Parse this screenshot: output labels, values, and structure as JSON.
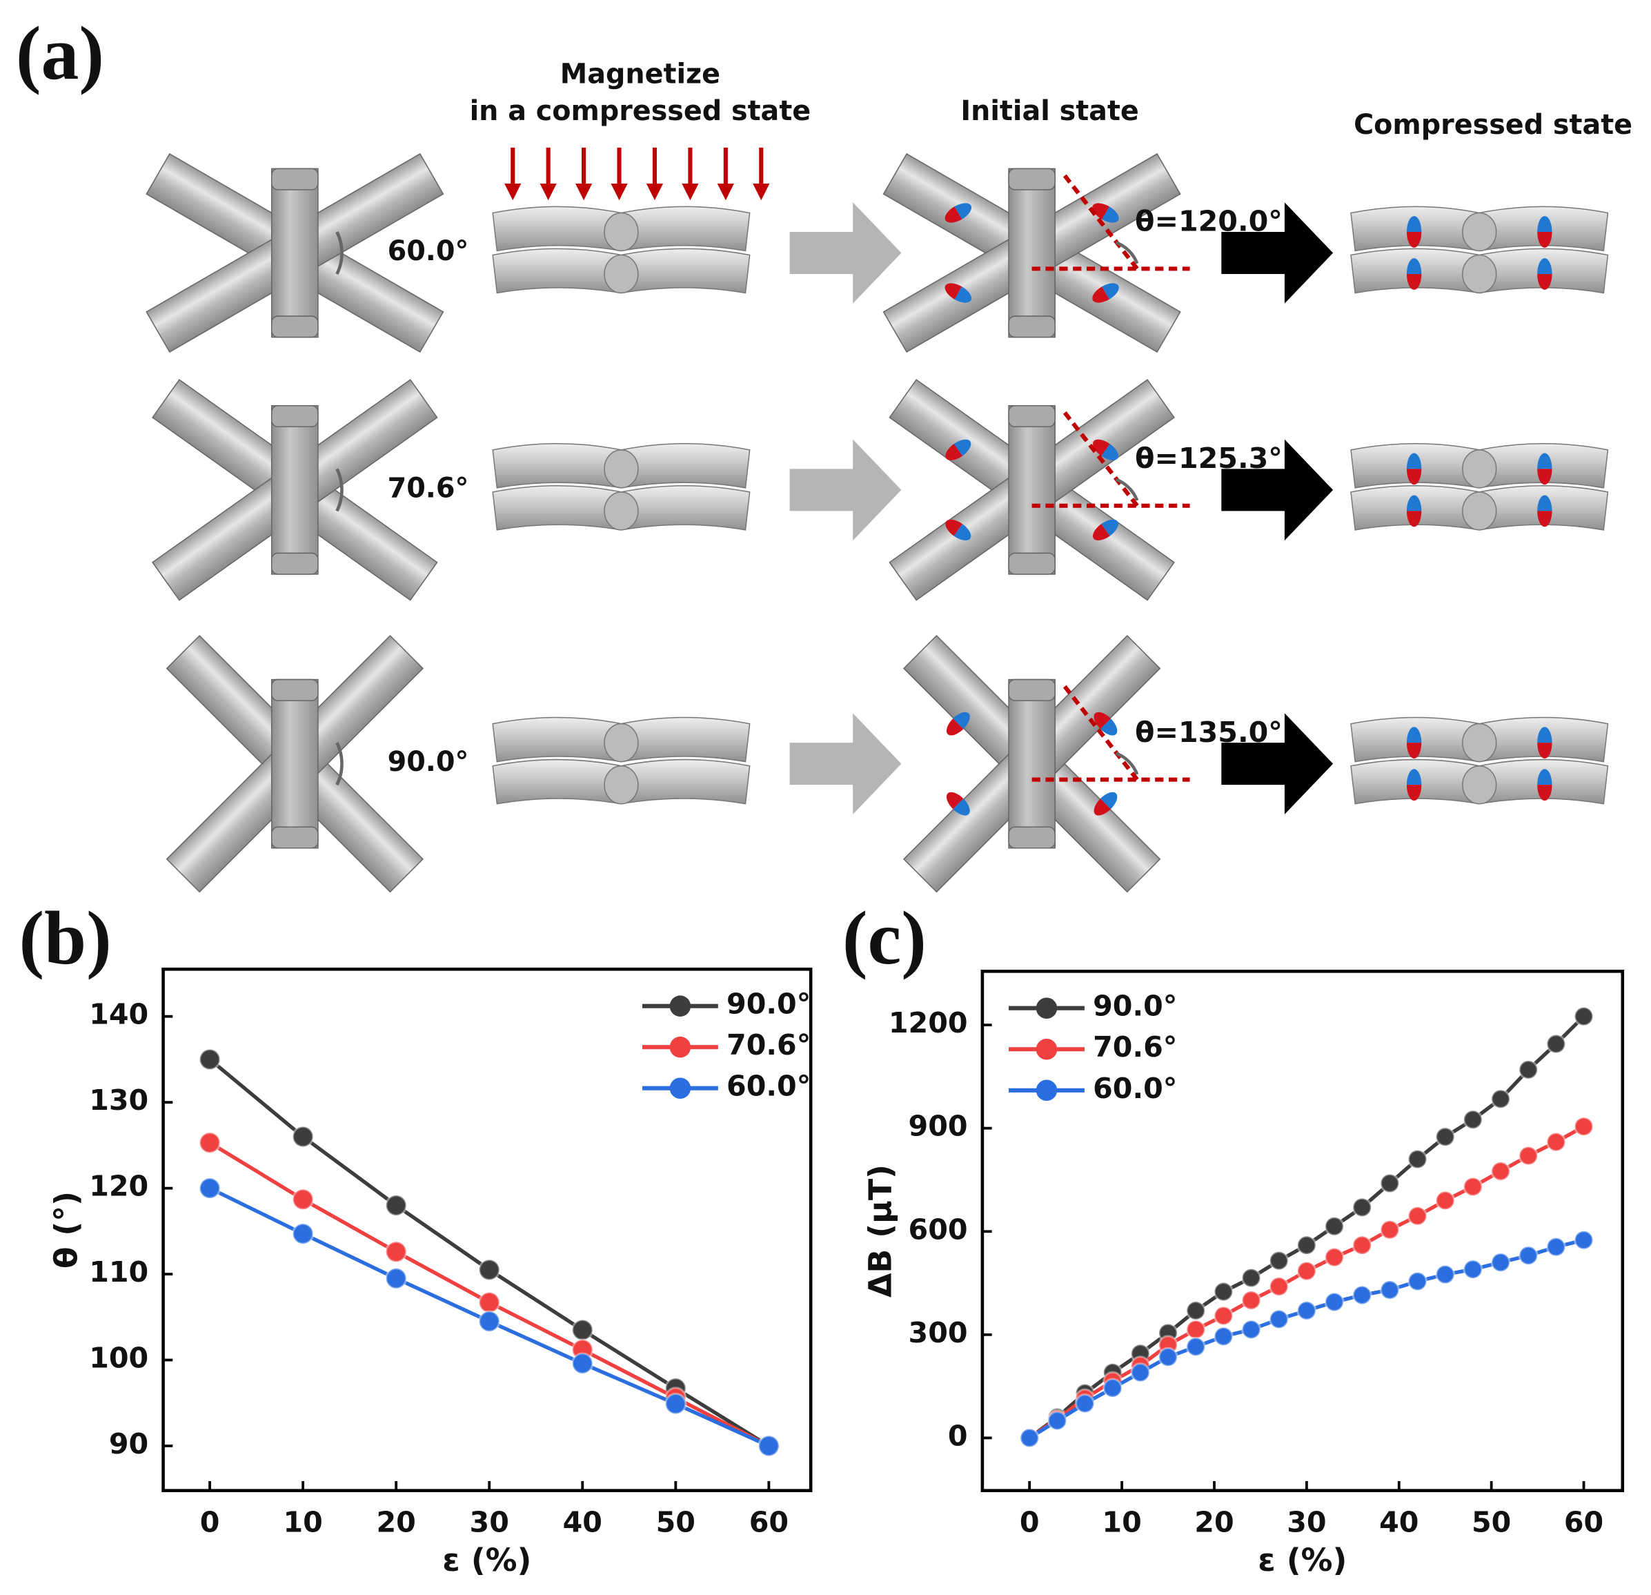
{
  "diagram": {
    "label": "(a)",
    "headings": [
      "Magnetize",
      "in a compressed state",
      "Initial state",
      "Compressed state"
    ],
    "rows": [
      {
        "angle": "60.0°",
        "theta": "θ=120.0°"
      },
      {
        "angle": "70.6°",
        "theta": "θ=125.3°"
      },
      {
        "angle": "90.0°",
        "theta": "θ=135.0°"
      }
    ]
  },
  "panel_labels": [
    "(b)",
    "(c)"
  ],
  "chart_data": [
    {
      "type": "line",
      "xlabel": "ε (%)",
      "ylabel": "θ (°)",
      "xlim": [
        -5,
        64.5
      ],
      "ylim": [
        84.8,
        145.5
      ],
      "xticks": [
        0,
        10,
        20,
        30,
        40,
        50,
        60
      ],
      "yticks": [
        90,
        100,
        110,
        120,
        130,
        140
      ],
      "legend": "upper right",
      "x": [
        0,
        10,
        20,
        30,
        40,
        50,
        60
      ],
      "series": [
        {
          "name": "90.0°",
          "color": "#3d3d3d",
          "values": [
            135,
            126,
            118,
            110.5,
            103.5,
            96.7,
            90
          ]
        },
        {
          "name": "70.6°",
          "color": "#f04040",
          "values": [
            125.3,
            118.7,
            112.6,
            106.7,
            101.2,
            95.6,
            90
          ]
        },
        {
          "name": "60.0°",
          "color": "#2a6ee0",
          "values": [
            120,
            114.7,
            109.5,
            104.5,
            99.6,
            94.9,
            90
          ]
        }
      ]
    },
    {
      "type": "line",
      "xlabel": "ε (%)",
      "ylabel": "ΔB (μT)",
      "xlim": [
        -5.1,
        64.2
      ],
      "ylim": [
        -153,
        1356
      ],
      "xticks": [
        0,
        10,
        20,
        30,
        40,
        50,
        60
      ],
      "yticks": [
        0,
        300,
        600,
        900,
        1200
      ],
      "legend": "upper left",
      "x": [
        0,
        3,
        6,
        9,
        12,
        15,
        18,
        21,
        24,
        27,
        30,
        33,
        36,
        39,
        42,
        45,
        48,
        51,
        54,
        57,
        60
      ],
      "series": [
        {
          "name": "90.0°",
          "color": "#3d3d3d",
          "values": [
            0,
            60,
            130,
            190,
            245,
            305,
            370,
            425,
            465,
            515,
            560,
            615,
            670,
            740,
            810,
            875,
            925,
            985,
            1070,
            1145,
            1225
          ]
        },
        {
          "name": "70.6°",
          "color": "#f04040",
          "values": [
            0,
            55,
            115,
            165,
            210,
            270,
            315,
            355,
            400,
            440,
            485,
            525,
            560,
            605,
            645,
            690,
            730,
            775,
            820,
            860,
            905
          ]
        },
        {
          "name": "60.0°",
          "color": "#2a6ee0",
          "values": [
            0,
            50,
            100,
            145,
            190,
            235,
            265,
            295,
            315,
            345,
            370,
            395,
            415,
            430,
            455,
            475,
            490,
            510,
            530,
            555,
            575
          ]
        }
      ]
    }
  ]
}
